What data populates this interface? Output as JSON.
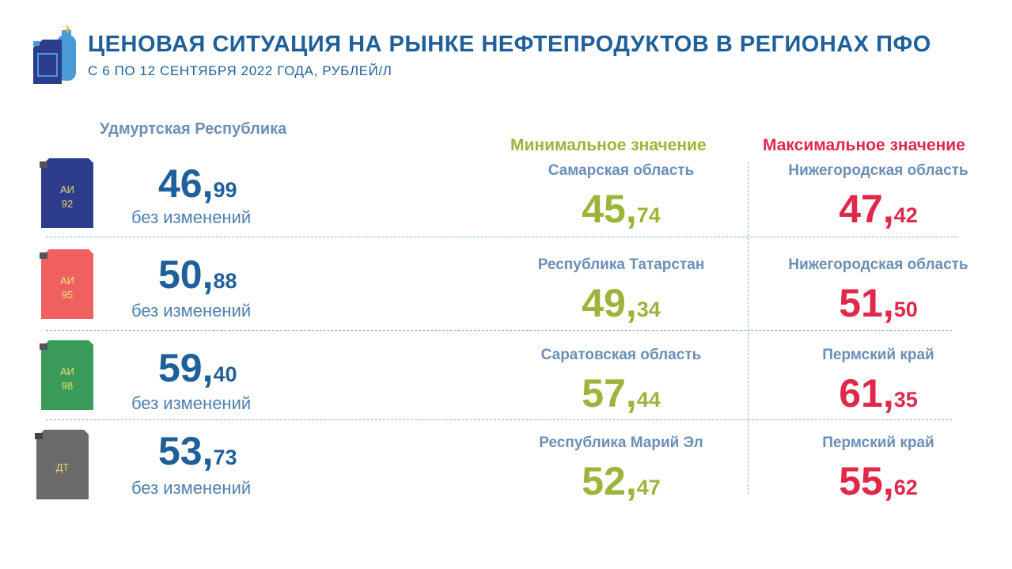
{
  "header": {
    "title": "ЦЕНОВАЯ СИТУАЦИЯ НА РЫНКЕ НЕФТЕПРОДУКТОВ В РЕГИОНАХ ПФО",
    "subtitle": "С 6 ПО 12 СЕНТЯБРЯ 2022 ГОДА, РУБЛЕЙ/Л"
  },
  "region_heading": "Удмуртская Республика",
  "min_heading": "Минимальное значение",
  "max_heading": "Максимальное значение",
  "colors": {
    "primary": "#1f5f9a",
    "min": "#9bb43a",
    "max": "#e0284a",
    "ai92": "#2d3d8c",
    "ai95": "#f06060",
    "ai98": "#3a9a5a",
    "dt": "#6a6a6a"
  },
  "rows": [
    {
      "fuel": [
        "АИ",
        "92"
      ],
      "price_int": "46,",
      "price_frac": "99",
      "status": "без изменений",
      "min_region": "Самарская область",
      "min_int": "45,",
      "min_frac": "74",
      "max_region": "Нижегородская область",
      "max_int": "47,",
      "max_frac": "42"
    },
    {
      "fuel": [
        "АИ",
        "95"
      ],
      "price_int": "50,",
      "price_frac": "88",
      "status": "без изменений",
      "min_region": "Республика Татарстан",
      "min_int": "49,",
      "min_frac": "34",
      "max_region": "Нижегородская область",
      "max_int": "51,",
      "max_frac": "50"
    },
    {
      "fuel": [
        "АИ",
        "98"
      ],
      "price_int": "59,",
      "price_frac": "40",
      "status": "без изменений",
      "min_region": "Саратовская область",
      "min_int": "57,",
      "min_frac": "44",
      "max_region": "Пермский край",
      "max_int": "61,",
      "max_frac": "35"
    },
    {
      "fuel": [
        "ДТ",
        ""
      ],
      "price_int": "53,",
      "price_frac": "73",
      "status": "без изменений",
      "min_region": "Республика Марий Эл",
      "min_int": "52,",
      "min_frac": "47",
      "max_region": "Пермский край",
      "max_int": "55,",
      "max_frac": "62"
    }
  ]
}
